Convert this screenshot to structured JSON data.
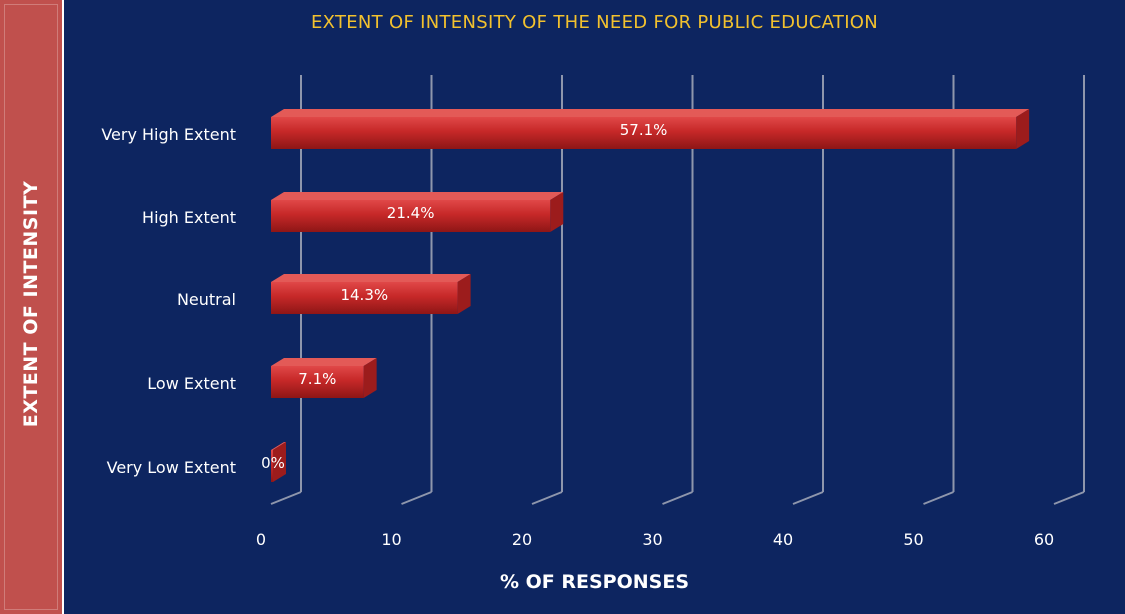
{
  "chart_data": {
    "type": "bar",
    "orientation": "horizontal",
    "title": "EXTENT OF INTENSITY OF THE NEED FOR PUBLIC EDUCATION",
    "xlabel": "% OF RESPONSES",
    "ylabel": "EXTENT OF INTENSITY",
    "categories": [
      "Very High Extent",
      "High Extent",
      "Neutral",
      "Low Extent",
      "Very Low Extent"
    ],
    "values": [
      57.1,
      21.4,
      14.3,
      7.1,
      0
    ],
    "data_labels": [
      "57.1%",
      "21.4%",
      "14.3%",
      "7.1%",
      "0%"
    ],
    "xlim": [
      0,
      60
    ],
    "xticks": [
      "0",
      "10",
      "20",
      "30",
      "40",
      "50",
      "60"
    ],
    "grid": true,
    "colors": {
      "bar": "#c62828",
      "background": "#0d2560",
      "title": "#f2c12e",
      "side_band": "#c0504d"
    }
  }
}
